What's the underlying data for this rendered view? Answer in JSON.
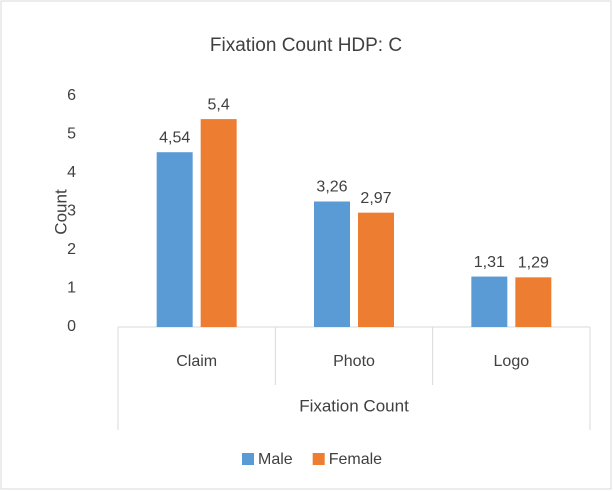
{
  "chart_data": {
    "type": "bar",
    "title": "Fixation Count HDP: C",
    "x_label": "Fixation Count",
    "y_label": "Count",
    "categories": [
      "Claim",
      "Photo",
      "Logo"
    ],
    "series": [
      {
        "name": "Male",
        "color": "#5b9bd5",
        "values": [
          4.54,
          3.26,
          1.31
        ],
        "value_labels": [
          "4,54",
          "3,26",
          "1,31"
        ]
      },
      {
        "name": "Female",
        "color": "#ed7d31",
        "values": [
          5.4,
          2.97,
          1.29
        ],
        "value_labels": [
          "5,4",
          "2,97",
          "1,29"
        ]
      }
    ],
    "ylim": [
      0,
      6
    ],
    "yticks": [
      0,
      1,
      2,
      3,
      4,
      5,
      6
    ],
    "grid": false,
    "legend": "bottom"
  }
}
